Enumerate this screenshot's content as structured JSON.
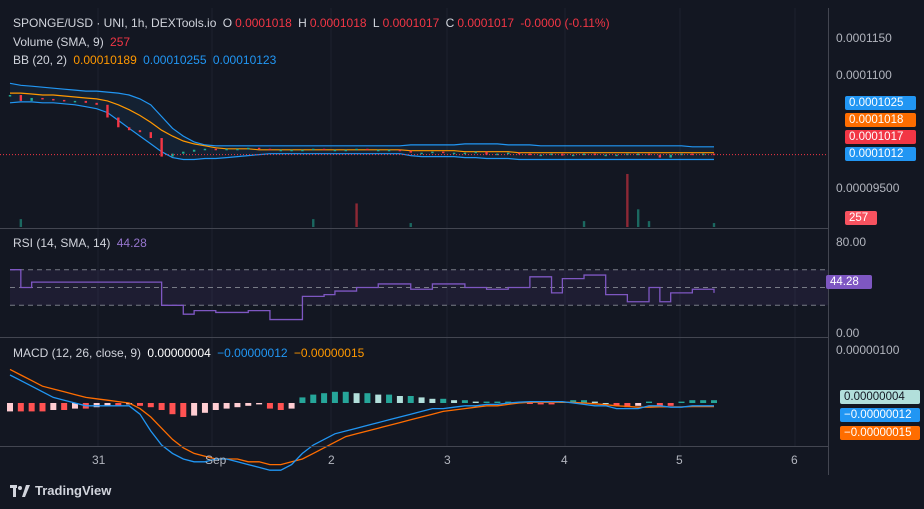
{
  "legend": {
    "symbol": "SPONGE/USD · UNI, 1h, DEXTools.io",
    "o_label": "O",
    "o": "0.0001018",
    "h_label": "H",
    "h": "0.0001018",
    "l_label": "L",
    "l": "0.0001017",
    "c_label": "C",
    "c": "0.0001017",
    "change": "-0.0000 (-0.11%)",
    "volume_label": "Volume (SMA, 9)",
    "volume_value": "257",
    "bb_label": "BB (20, 2)",
    "bb_basis": "0.00010189",
    "bb_upper": "0.00010255",
    "bb_lower": "0.00010123",
    "rsi_label": "RSI (14, SMA, 14)",
    "rsi_value": "44.28",
    "macd_label": "MACD (12, 26, close, 9)",
    "macd_hist": "0.00000004",
    "macd_line": "−0.00000012",
    "macd_signal": "−0.00000015"
  },
  "price_axis": {
    "ticks": [
      "0.0001150",
      "0.0001100",
      "0.00009500"
    ],
    "labels": {
      "upper": "0.0001025",
      "basis": "0.0001018",
      "close": "0.0001017",
      "lower": "0.0001012",
      "volume": "257"
    }
  },
  "rsi_axis": {
    "ticks": [
      "80.00",
      "0.00"
    ],
    "current": "44.28"
  },
  "macd_axis": {
    "ticks": [
      "0.00000100"
    ],
    "hist": "0.00000004",
    "macd": "−0.00000012",
    "signal": "−0.00000015"
  },
  "time_axis": {
    "ticks": [
      "31",
      "Sep",
      "2",
      "3",
      "4",
      "5",
      "6"
    ]
  },
  "colors": {
    "bg": "#131722",
    "up": "#22ab94",
    "down": "#f23645",
    "bb_band": "#2196f3",
    "bb_basis": "#ff9800",
    "rsi": "#7e57c2",
    "macd": "#2196f3",
    "signal": "#ff6d00"
  },
  "footer": {
    "brand": "TradingView"
  },
  "chart_data": [
    {
      "type": "line",
      "name": "price",
      "x": [
        0,
        1,
        2,
        3,
        4,
        5,
        6,
        7,
        8,
        9,
        10,
        11,
        12,
        13,
        14,
        15,
        16,
        17,
        18,
        19,
        20,
        21,
        22,
        23,
        24,
        25,
        26,
        27,
        28,
        29,
        30,
        31,
        32,
        33,
        34,
        35,
        36,
        37,
        38,
        39,
        40,
        41,
        42,
        43,
        44,
        45,
        46,
        47,
        48,
        49,
        50,
        51,
        52,
        53,
        54,
        55,
        56,
        57,
        58,
        59,
        60,
        61,
        62,
        63,
        64,
        65
      ],
      "close": [
        0.0001078,
        0.0001072,
        0.0001075,
        0.0001074,
        0.0001073,
        0.0001072,
        0.0001072,
        0.000107,
        0.0001068,
        0.0001055,
        0.0001045,
        0.0001042,
        0.000104,
        0.0001034,
        0.0001015,
        0.0001018,
        0.000102,
        0.0001022,
        0.0001023,
        0.0001022,
        0.0001023,
        0.0001023,
        0.0001024,
        0.0001023,
        0.0001022,
        0.0001022,
        0.0001022,
        0.0001022,
        0.0001023,
        0.0001022,
        0.0001022,
        0.0001022,
        0.0001023,
        0.0001022,
        0.0001022,
        0.0001022,
        0.0001021,
        0.0001019,
        0.0001019,
        0.000102,
        0.0001019,
        0.0001019,
        0.0001019,
        0.000102,
        0.0001017,
        0.0001018,
        0.0001019,
        0.0001018,
        0.0001017,
        0.0001017,
        0.0001018,
        0.0001016,
        0.0001017,
        0.0001018,
        0.0001017,
        0.0001017,
        0.0001017,
        0.0001018,
        0.0001018,
        0.0001017,
        0.0001014,
        0.0001017,
        0.0001018,
        0.0001017,
        0.0001018,
        0.0001017
      ],
      "bb_upper": [
        0.000109,
        0.0001088,
        0.0001087,
        0.0001086,
        0.0001085,
        0.0001084,
        0.0001083,
        0.0001082,
        0.0001082,
        0.0001081,
        0.000108,
        0.0001078,
        0.0001074,
        0.0001068,
        0.0001056,
        0.0001044,
        0.0001036,
        0.000103,
        0.0001027,
        0.0001026,
        0.0001026,
        0.0001026,
        0.0001026,
        0.0001026,
        0.0001026,
        0.0001026,
        0.0001026,
        0.0001026,
        0.0001026,
        0.0001026,
        0.0001026,
        0.0001026,
        0.0001026,
        0.0001026,
        0.0001026,
        0.0001026,
        0.0001026,
        0.0001027,
        0.0001027,
        0.0001027,
        0.0001027,
        0.0001027,
        0.0001028,
        0.0001028,
        0.0001028,
        0.0001028,
        0.0001027,
        0.0001027,
        0.0001027,
        0.0001026,
        0.0001026,
        0.0001026,
        0.0001026,
        0.0001026,
        0.0001026,
        0.0001026,
        0.0001026,
        0.0001026,
        0.0001026,
        0.0001026,
        0.0001026,
        0.0001026,
        0.0001026,
        0.0001025,
        0.0001025,
        0.0001025
      ],
      "bb_basis": [
        0.000108,
        0.000108,
        0.0001079,
        0.0001078,
        0.0001078,
        0.0001077,
        0.0001076,
        0.0001075,
        0.0001074,
        0.0001072,
        0.0001068,
        0.0001063,
        0.0001057,
        0.000105,
        0.0001042,
        0.0001036,
        0.0001031,
        0.0001028,
        0.0001026,
        0.0001024,
        0.0001023,
        0.0001023,
        0.0001023,
        0.0001022,
        0.0001022,
        0.0001022,
        0.0001022,
        0.0001022,
        0.0001022,
        0.0001022,
        0.0001022,
        0.0001022,
        0.0001022,
        0.0001022,
        0.0001022,
        0.0001022,
        0.0001022,
        0.0001021,
        0.0001021,
        0.0001021,
        0.0001021,
        0.0001021,
        0.000102,
        0.000102,
        0.000102,
        0.000102,
        0.000102,
        0.0001019,
        0.0001019,
        0.0001019,
        0.0001019,
        0.0001019,
        0.0001019,
        0.0001019,
        0.0001019,
        0.0001019,
        0.0001019,
        0.0001019,
        0.0001019,
        0.0001019,
        0.0001019,
        0.0001019,
        0.0001019,
        0.0001019,
        0.0001019,
        0.0001019
      ],
      "bb_lower": [
        0.000107,
        0.0001071,
        0.0001071,
        0.000107,
        0.000107,
        0.0001069,
        0.0001068,
        0.0001066,
        0.0001064,
        0.000106,
        0.0001052,
        0.0001044,
        0.0001036,
        0.0001028,
        0.000102,
        0.0001014,
        0.0001012,
        0.0001012,
        0.0001013,
        0.0001013,
        0.0001014,
        0.0001015,
        0.0001016,
        0.0001017,
        0.0001018,
        0.0001018,
        0.0001018,
        0.0001018,
        0.0001018,
        0.0001018,
        0.0001018,
        0.0001018,
        0.0001018,
        0.0001018,
        0.0001018,
        0.0001018,
        0.0001018,
        0.0001016,
        0.0001015,
        0.0001015,
        0.0001015,
        0.0001015,
        0.0001014,
        0.0001014,
        0.0001013,
        0.0001013,
        0.0001013,
        0.0001012,
        0.0001012,
        0.0001012,
        0.0001012,
        0.0001012,
        0.0001012,
        0.0001012,
        0.0001012,
        0.0001012,
        0.0001012,
        0.0001012,
        0.0001012,
        0.0001012,
        0.0001012,
        0.0001012,
        0.0001012,
        0.0001012,
        0.0001012,
        0.0001012
      ],
      "ylim": [
        9.45e-05,
        0.0001165
      ]
    },
    {
      "type": "bar",
      "name": "volume",
      "values": [
        0,
        40,
        0,
        0,
        0,
        0,
        0,
        0,
        0,
        0,
        0,
        0,
        0,
        0,
        0,
        0,
        0,
        0,
        0,
        0,
        0,
        0,
        0,
        0,
        0,
        0,
        0,
        0,
        40,
        0,
        0,
        0,
        120,
        0,
        0,
        0,
        0,
        20,
        0,
        0,
        0,
        0,
        0,
        0,
        0,
        0,
        0,
        0,
        0,
        0,
        0,
        0,
        0,
        30,
        0,
        0,
        0,
        270,
        90,
        30,
        0,
        0,
        0,
        0,
        0,
        20
      ],
      "last": 257
    },
    {
      "type": "line",
      "name": "rsi",
      "values": [
        70,
        50,
        56,
        56,
        56,
        56,
        56,
        56,
        56,
        56,
        56,
        56,
        56,
        56,
        30,
        30,
        20,
        24,
        24,
        22,
        22,
        22,
        24,
        24,
        14,
        14,
        14,
        40,
        40,
        42,
        46,
        46,
        50,
        50,
        54,
        54,
        54,
        48,
        48,
        54,
        54,
        54,
        50,
        50,
        48,
        48,
        50,
        50,
        62,
        62,
        44,
        60,
        60,
        64,
        64,
        42,
        42,
        34,
        34,
        50,
        34,
        44,
        44,
        48,
        48,
        44
      ],
      "ylim": [
        0,
        100
      ],
      "bands": [
        30,
        50,
        70
      ]
    },
    {
      "type": "bar",
      "name": "macd",
      "hist": [
        -3,
        -3,
        -3,
        -3,
        -2.5,
        -2.5,
        -2,
        -2,
        -1.5,
        -1,
        -1,
        -0.5,
        -1,
        -1.5,
        -2.5,
        -4,
        -5,
        -4.5,
        -3.5,
        -2.5,
        -2,
        -1.5,
        -1,
        -0.5,
        -2,
        -2.5,
        -2,
        2,
        3,
        3.5,
        4,
        4,
        3.5,
        3.5,
        3,
        3,
        2.5,
        2.5,
        2,
        1.5,
        1.5,
        1,
        1,
        0.5,
        0.5,
        0.5,
        0.5,
        0.3,
        -0.3,
        -0.5,
        -0.5,
        0.5,
        1,
        1,
        0.5,
        0,
        -1,
        -1.5,
        -1,
        0.5,
        -1,
        -1,
        0.5,
        1,
        1,
        1
      ],
      "macd": [
        10,
        8,
        6,
        4,
        2,
        1,
        0,
        -1,
        -1,
        -1,
        -1,
        -1,
        -4,
        -10,
        -15,
        -18,
        -20,
        -21,
        -21,
        -20,
        -20,
        -21,
        -22,
        -23,
        -24,
        -24,
        -22,
        -18,
        -15,
        -13,
        -11,
        -10,
        -9,
        -8,
        -7,
        -6,
        -5,
        -4,
        -3,
        -2,
        -2,
        -1.5,
        -1,
        -1,
        -0.5,
        -0.5,
        0,
        0.3,
        0.5,
        0.5,
        0.5,
        0.5,
        0,
        -0.5,
        -1,
        -1,
        -2,
        -2,
        -2,
        -1,
        -1,
        -1.5,
        -1.5,
        -1,
        -1,
        -1
      ],
      "signal": [
        12,
        10,
        8,
        6,
        5,
        4,
        3,
        2,
        1.5,
        1,
        0.5,
        0,
        -2,
        -5,
        -9,
        -13,
        -16,
        -18,
        -19,
        -20,
        -20,
        -20,
        -21,
        -21,
        -22,
        -22,
        -21,
        -20,
        -18,
        -16,
        -14,
        -12,
        -11,
        -10,
        -9,
        -8,
        -7,
        -6,
        -5,
        -4,
        -3,
        -2.5,
        -2,
        -1.5,
        -1,
        -1,
        -0.5,
        0,
        0.2,
        0.3,
        0.3,
        0.3,
        0.2,
        0,
        -0.3,
        -0.6,
        -1,
        -1.2,
        -1.5,
        -1.5,
        -1.4,
        -1.4,
        -1.4,
        -1.3,
        -1.3,
        -1.3
      ],
      "ylim": [
        -22,
        12
      ]
    }
  ]
}
